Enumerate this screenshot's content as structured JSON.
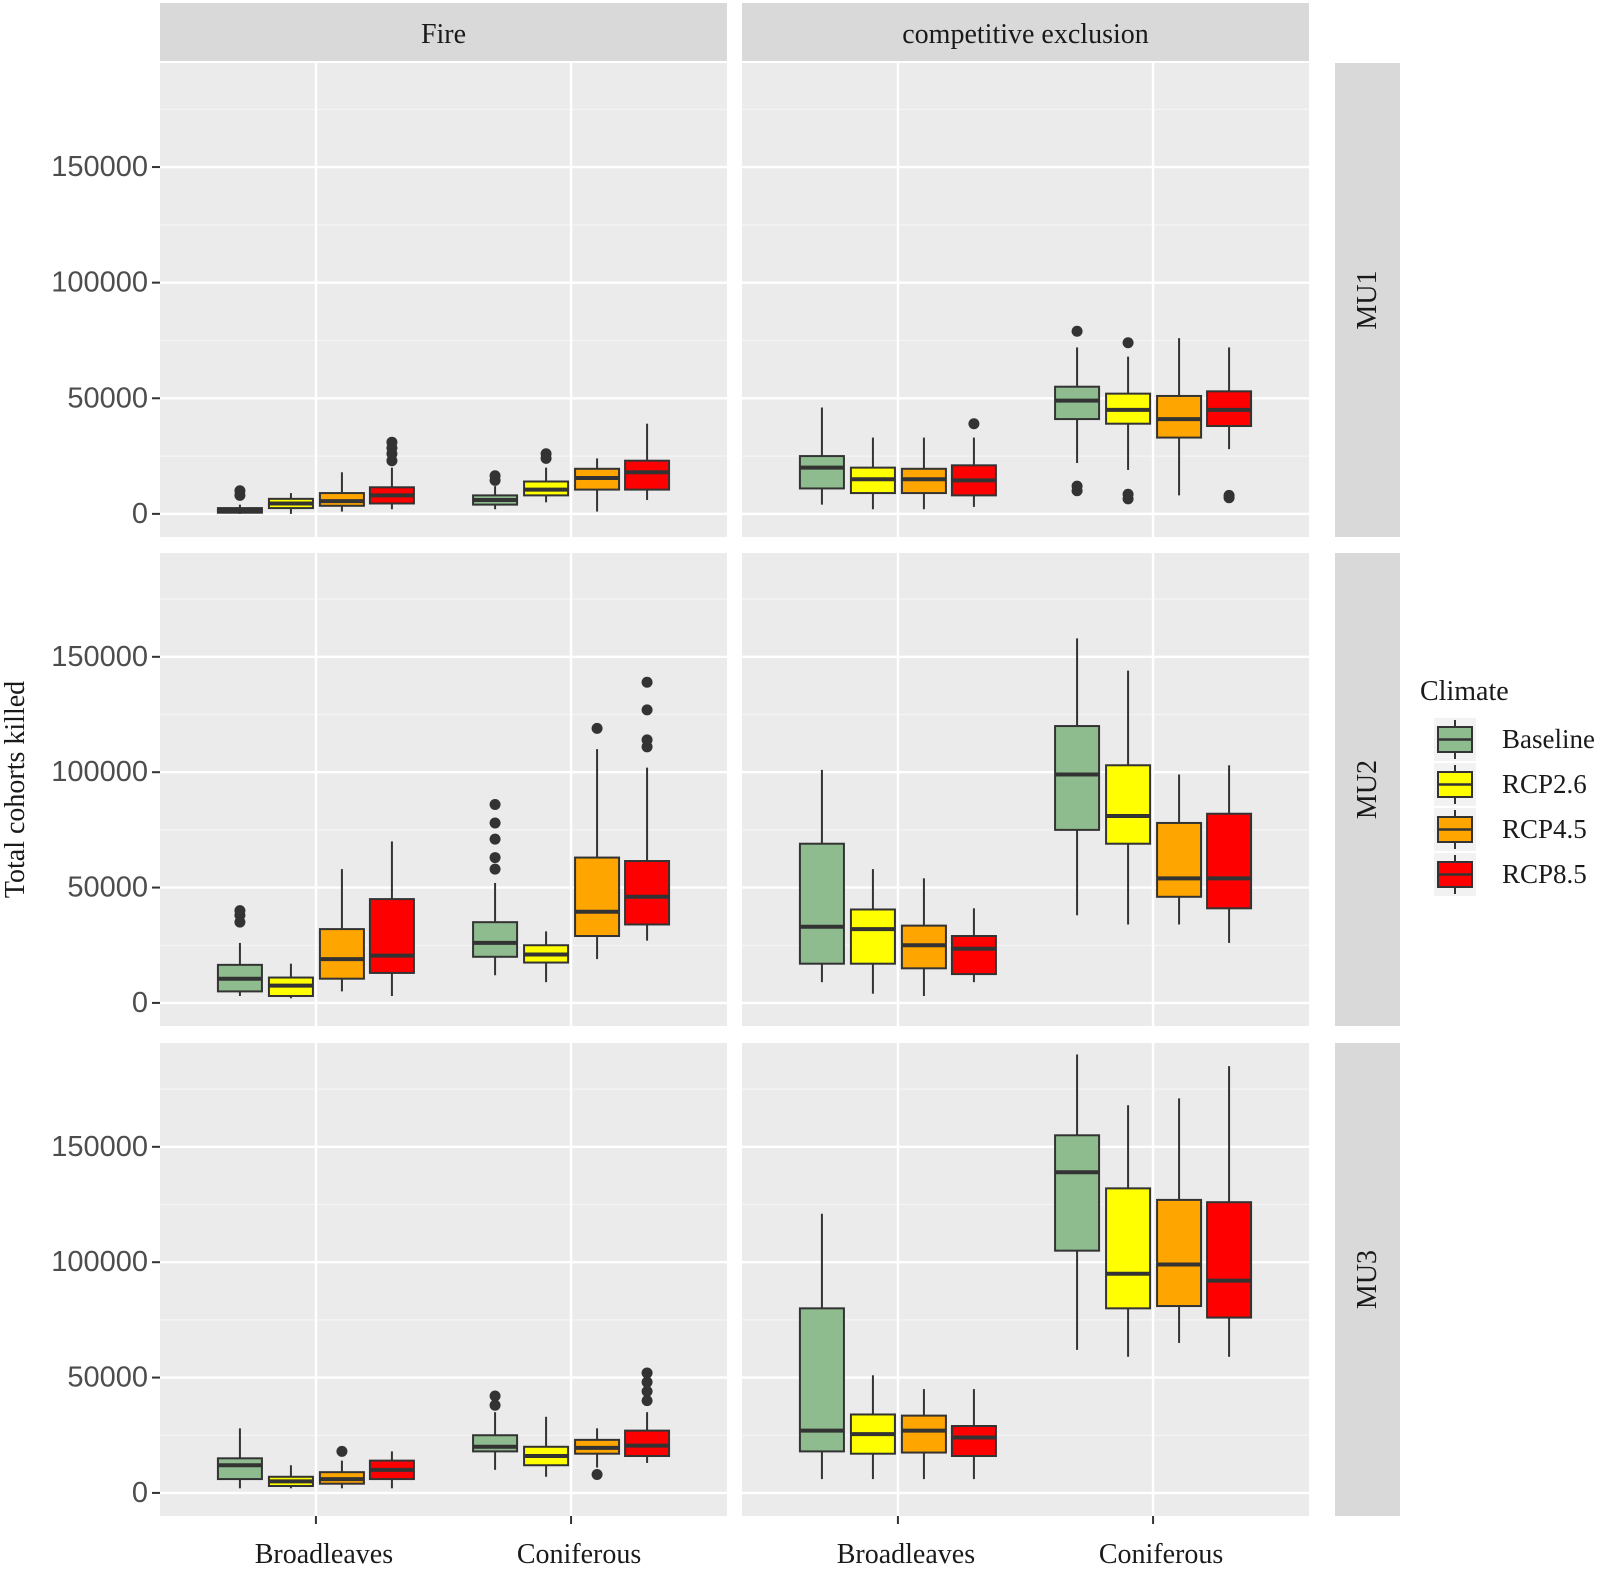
{
  "chart_data": {
    "type": "boxplot",
    "ylabel": "Total cohorts killed",
    "xlabel": "",
    "ylim": [
      -10000,
      195000
    ],
    "y_ticks": [
      0,
      50000,
      100000,
      150000
    ],
    "y_tick_labels": [
      "0",
      "50000",
      "100000",
      "150000"
    ],
    "categories": [
      "Broadleaves",
      "Coniferous"
    ],
    "column_facets": [
      "Fire",
      "competitive exclusion"
    ],
    "row_facets": [
      "MU1",
      "MU2",
      "MU3"
    ],
    "legend": {
      "title": "Climate",
      "placement": "right",
      "entries": [
        {
          "name": "Baseline",
          "color": "#8fbc8f"
        },
        {
          "name": "RCP2.6",
          "color": "#ffff00"
        },
        {
          "name": "RCP4.5",
          "color": "#ffa500"
        },
        {
          "name": "RCP8.5",
          "color": "#ff0000"
        }
      ]
    },
    "panels": [
      {
        "row": "MU1",
        "col": "Fire",
        "groups": [
          {
            "category": "Broadleaves",
            "boxes": [
              {
                "climate": "Baseline",
                "min": 0,
                "q1": 500,
                "median": 1500,
                "q3": 2500,
                "max": 4000,
                "outliers": [
                  8000,
                  10000
                ]
              },
              {
                "climate": "RCP2.6",
                "min": 0,
                "q1": 2500,
                "median": 4500,
                "q3": 6500,
                "max": 9000,
                "outliers": []
              },
              {
                "climate": "RCP4.5",
                "min": 1000,
                "q1": 3500,
                "median": 5500,
                "q3": 9000,
                "max": 18000,
                "outliers": []
              },
              {
                "climate": "RCP8.5",
                "min": 2000,
                "q1": 4500,
                "median": 8000,
                "q3": 11500,
                "max": 20000,
                "outliers": [
                  23000,
                  26000,
                  28500,
                  31000
                ]
              }
            ]
          },
          {
            "category": "Coniferous",
            "boxes": [
              {
                "climate": "Baseline",
                "min": 2000,
                "q1": 4000,
                "median": 6000,
                "q3": 8000,
                "max": 12000,
                "outliers": [
                  14500,
                  16500
                ]
              },
              {
                "climate": "RCP2.6",
                "min": 5000,
                "q1": 8000,
                "median": 10500,
                "q3": 14000,
                "max": 20000,
                "outliers": [
                  24000,
                  26000
                ]
              },
              {
                "climate": "RCP4.5",
                "min": 1000,
                "q1": 10500,
                "median": 15500,
                "q3": 19500,
                "max": 24000,
                "outliers": []
              },
              {
                "climate": "RCP8.5",
                "min": 6000,
                "q1": 10500,
                "median": 18000,
                "q3": 23000,
                "max": 39000,
                "outliers": []
              }
            ]
          }
        ]
      },
      {
        "row": "MU1",
        "col": "competitive exclusion",
        "groups": [
          {
            "category": "Broadleaves",
            "boxes": [
              {
                "climate": "Baseline",
                "min": 4000,
                "q1": 11000,
                "median": 20000,
                "q3": 25000,
                "max": 46000,
                "outliers": []
              },
              {
                "climate": "RCP2.6",
                "min": 2000,
                "q1": 9000,
                "median": 15000,
                "q3": 20000,
                "max": 33000,
                "outliers": []
              },
              {
                "climate": "RCP4.5",
                "min": 2000,
                "q1": 9000,
                "median": 15000,
                "q3": 19500,
                "max": 33000,
                "outliers": []
              },
              {
                "climate": "RCP8.5",
                "min": 3000,
                "q1": 8000,
                "median": 14500,
                "q3": 21000,
                "max": 33000,
                "outliers": [
                  39000
                ]
              }
            ]
          },
          {
            "category": "Coniferous",
            "boxes": [
              {
                "climate": "Baseline",
                "min": 22000,
                "q1": 41000,
                "median": 49000,
                "q3": 55000,
                "max": 72000,
                "outliers": [
                  79000,
                  10000,
                  12000
                ]
              },
              {
                "climate": "RCP2.6",
                "min": 19000,
                "q1": 39000,
                "median": 45000,
                "q3": 52000,
                "max": 68000,
                "outliers": [
                  74000,
                  6500,
                  8500
                ]
              },
              {
                "climate": "RCP4.5",
                "min": 8000,
                "q1": 33000,
                "median": 41000,
                "q3": 51000,
                "max": 76000,
                "outliers": []
              },
              {
                "climate": "RCP8.5",
                "min": 28000,
                "q1": 38000,
                "median": 45000,
                "q3": 53000,
                "max": 72000,
                "outliers": [
                  7000,
                  8000
                ]
              }
            ]
          }
        ]
      },
      {
        "row": "MU2",
        "col": "Fire",
        "groups": [
          {
            "category": "Broadleaves",
            "boxes": [
              {
                "climate": "Baseline",
                "min": 3000,
                "q1": 5000,
                "median": 10500,
                "q3": 16500,
                "max": 26000,
                "outliers": [
                  35000,
                  38000,
                  40000
                ]
              },
              {
                "climate": "RCP2.6",
                "min": 2000,
                "q1": 3000,
                "median": 7500,
                "q3": 11000,
                "max": 17000,
                "outliers": []
              },
              {
                "climate": "RCP4.5",
                "min": 5000,
                "q1": 10500,
                "median": 19000,
                "q3": 32000,
                "max": 58000,
                "outliers": []
              },
              {
                "climate": "RCP8.5",
                "min": 3000,
                "q1": 13000,
                "median": 20500,
                "q3": 45000,
                "max": 70000,
                "outliers": []
              }
            ]
          },
          {
            "category": "Coniferous",
            "boxes": [
              {
                "climate": "Baseline",
                "min": 12000,
                "q1": 20000,
                "median": 26000,
                "q3": 35000,
                "max": 52000,
                "outliers": [
                  58000,
                  63000,
                  71000,
                  78000,
                  86000
                ]
              },
              {
                "climate": "RCP2.6",
                "min": 9000,
                "q1": 17500,
                "median": 21000,
                "q3": 25000,
                "max": 31000,
                "outliers": []
              },
              {
                "climate": "RCP4.5",
                "min": 19000,
                "q1": 29000,
                "median": 39500,
                "q3": 63000,
                "max": 110000,
                "outliers": [
                  119000
                ]
              },
              {
                "climate": "RCP8.5",
                "min": 27000,
                "q1": 34000,
                "median": 46000,
                "q3": 61500,
                "max": 102000,
                "outliers": [
                  111000,
                  114000,
                  127000,
                  139000
                ]
              }
            ]
          }
        ]
      },
      {
        "row": "MU2",
        "col": "competitive exclusion",
        "groups": [
          {
            "category": "Broadleaves",
            "boxes": [
              {
                "climate": "Baseline",
                "min": 9000,
                "q1": 17000,
                "median": 33000,
                "q3": 69000,
                "max": 101000,
                "outliers": []
              },
              {
                "climate": "RCP2.6",
                "min": 4000,
                "q1": 17000,
                "median": 32000,
                "q3": 40500,
                "max": 58000,
                "outliers": []
              },
              {
                "climate": "RCP4.5",
                "min": 3000,
                "q1": 15000,
                "median": 25000,
                "q3": 33500,
                "max": 54000,
                "outliers": []
              },
              {
                "climate": "RCP8.5",
                "min": 9000,
                "q1": 12500,
                "median": 23500,
                "q3": 29000,
                "max": 41000,
                "outliers": []
              }
            ]
          },
          {
            "category": "Coniferous",
            "boxes": [
              {
                "climate": "Baseline",
                "min": 38000,
                "q1": 75000,
                "median": 99000,
                "q3": 120000,
                "max": 158000,
                "outliers": []
              },
              {
                "climate": "RCP2.6",
                "min": 34000,
                "q1": 69000,
                "median": 81000,
                "q3": 103000,
                "max": 144000,
                "outliers": []
              },
              {
                "climate": "RCP4.5",
                "min": 34000,
                "q1": 46000,
                "median": 54000,
                "q3": 78000,
                "max": 99000,
                "outliers": []
              },
              {
                "climate": "RCP8.5",
                "min": 26000,
                "q1": 41000,
                "median": 54000,
                "q3": 82000,
                "max": 103000,
                "outliers": []
              }
            ]
          }
        ]
      },
      {
        "row": "MU3",
        "col": "Fire",
        "groups": [
          {
            "category": "Broadleaves",
            "boxes": [
              {
                "climate": "Baseline",
                "min": 2000,
                "q1": 6000,
                "median": 12000,
                "q3": 15000,
                "max": 28000,
                "outliers": []
              },
              {
                "climate": "RCP2.6",
                "min": 2000,
                "q1": 3000,
                "median": 5000,
                "q3": 7000,
                "max": 12000,
                "outliers": []
              },
              {
                "climate": "RCP4.5",
                "min": 2000,
                "q1": 4000,
                "median": 6000,
                "q3": 9000,
                "max": 14000,
                "outliers": [
                  18000
                ]
              },
              {
                "climate": "RCP8.5",
                "min": 2000,
                "q1": 6000,
                "median": 10000,
                "q3": 14000,
                "max": 18000,
                "outliers": []
              }
            ]
          },
          {
            "category": "Coniferous",
            "boxes": [
              {
                "climate": "Baseline",
                "min": 10000,
                "q1": 18000,
                "median": 20000,
                "q3": 25000,
                "max": 35000,
                "outliers": [
                  38000,
                  42000
                ]
              },
              {
                "climate": "RCP2.6",
                "min": 7000,
                "q1": 12000,
                "median": 16000,
                "q3": 20000,
                "max": 33000,
                "outliers": []
              },
              {
                "climate": "RCP4.5",
                "min": 11000,
                "q1": 17000,
                "median": 19500,
                "q3": 23000,
                "max": 28000,
                "outliers": [
                  8000
                ]
              },
              {
                "climate": "RCP8.5",
                "min": 13000,
                "q1": 16000,
                "median": 20500,
                "q3": 27000,
                "max": 35000,
                "outliers": [
                  40000,
                  44000,
                  48000,
                  52000
                ]
              }
            ]
          }
        ]
      },
      {
        "row": "MU3",
        "col": "competitive exclusion",
        "groups": [
          {
            "category": "Broadleaves",
            "boxes": [
              {
                "climate": "Baseline",
                "min": 6000,
                "q1": 18000,
                "median": 27000,
                "q3": 80000,
                "max": 121000,
                "outliers": []
              },
              {
                "climate": "RCP2.6",
                "min": 6000,
                "q1": 17000,
                "median": 25500,
                "q3": 34000,
                "max": 51000,
                "outliers": []
              },
              {
                "climate": "RCP4.5",
                "min": 6000,
                "q1": 17500,
                "median": 27000,
                "q3": 33500,
                "max": 45000,
                "outliers": []
              },
              {
                "climate": "RCP8.5",
                "min": 6000,
                "q1": 16000,
                "median": 24000,
                "q3": 29000,
                "max": 45000,
                "outliers": []
              }
            ]
          },
          {
            "category": "Coniferous",
            "boxes": [
              {
                "climate": "Baseline",
                "min": 62000,
                "q1": 105000,
                "median": 139000,
                "q3": 155000,
                "max": 190000,
                "outliers": []
              },
              {
                "climate": "RCP2.6",
                "min": 59000,
                "q1": 80000,
                "median": 95000,
                "q3": 132000,
                "max": 168000,
                "outliers": []
              },
              {
                "climate": "RCP4.5",
                "min": 65000,
                "q1": 81000,
                "median": 99000,
                "q3": 127000,
                "max": 171000,
                "outliers": []
              },
              {
                "climate": "RCP8.5",
                "min": 59000,
                "q1": 76000,
                "median": 92000,
                "q3": 126000,
                "max": 185000,
                "outliers": []
              }
            ]
          }
        ]
      }
    ]
  }
}
